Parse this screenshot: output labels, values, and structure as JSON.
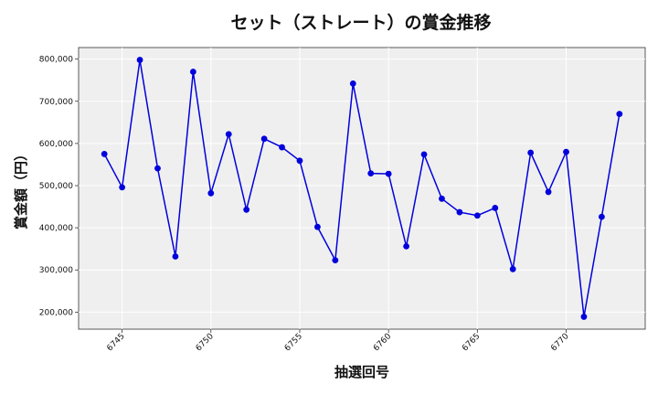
{
  "chart_data": {
    "type": "line",
    "title": "セット（ストレート）の賞金推移",
    "xlabel": "抽選回号",
    "ylabel": "賞金額（円）",
    "x": [
      6744,
      6745,
      6746,
      6747,
      6748,
      6749,
      6750,
      6751,
      6752,
      6753,
      6754,
      6755,
      6756,
      6757,
      6758,
      6759,
      6760,
      6761,
      6762,
      6763,
      6764,
      6765,
      6766,
      6767,
      6768,
      6769,
      6770,
      6771,
      6772,
      6773
    ],
    "series": [
      {
        "values": [
          575000,
          496000,
          798000,
          541000,
          332000,
          770000,
          482000,
          622000,
          443000,
          611000,
          591000,
          559000,
          402000,
          323000,
          742000,
          529000,
          528000,
          356000,
          574000,
          469000,
          437000,
          429000,
          447000,
          302000,
          578000,
          485000,
          580000,
          189000,
          426000,
          670000
        ],
        "color": "#0000dd"
      }
    ],
    "xticks": [
      6745,
      6750,
      6755,
      6760,
      6765,
      6770
    ],
    "yticks": [
      200000,
      300000,
      400000,
      500000,
      600000,
      700000,
      800000
    ],
    "xlim": [
      6742.55,
      6774.45
    ],
    "ylim": [
      159550,
      827450
    ],
    "grid": true,
    "background": "#efefef"
  }
}
